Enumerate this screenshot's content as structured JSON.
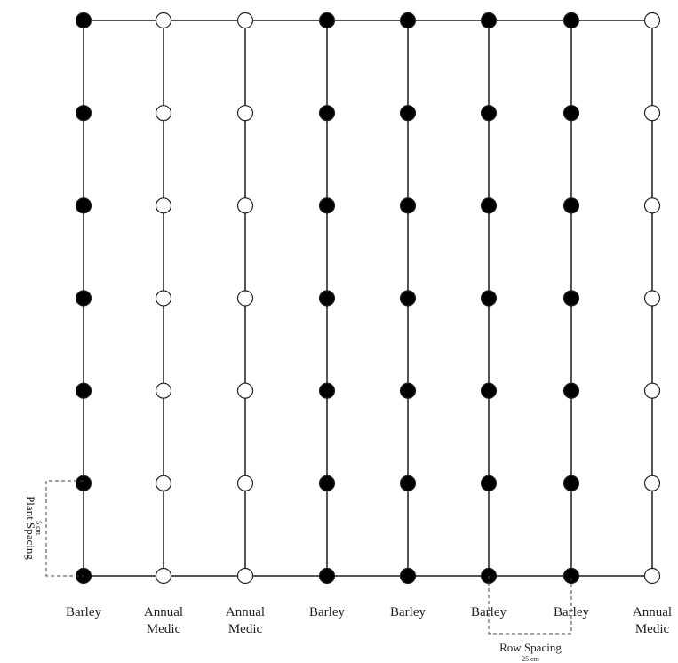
{
  "rows": [
    {
      "crop": "barley",
      "label": [
        "Barley"
      ]
    },
    {
      "crop": "medic",
      "label": [
        "Annual",
        "Medic"
      ]
    },
    {
      "crop": "medic",
      "label": [
        "Annual",
        "Medic"
      ]
    },
    {
      "crop": "barley",
      "label": [
        "Barley"
      ]
    },
    {
      "crop": "barley",
      "label": [
        "Barley"
      ]
    },
    {
      "crop": "barley",
      "label": [
        "Barley"
      ]
    },
    {
      "crop": "barley",
      "label": [
        "Barley"
      ]
    },
    {
      "crop": "medic",
      "label": [
        "Annual",
        "Medic"
      ]
    }
  ],
  "plants_per_row": 7,
  "plant_spacing": {
    "label": "Plant Spacing",
    "value": "5 cm"
  },
  "row_spacing": {
    "label": "Row Spacing",
    "value": "25 cm"
  },
  "colors": {
    "barley": "#000000",
    "medic": "#ffffff",
    "line": "#555555"
  }
}
